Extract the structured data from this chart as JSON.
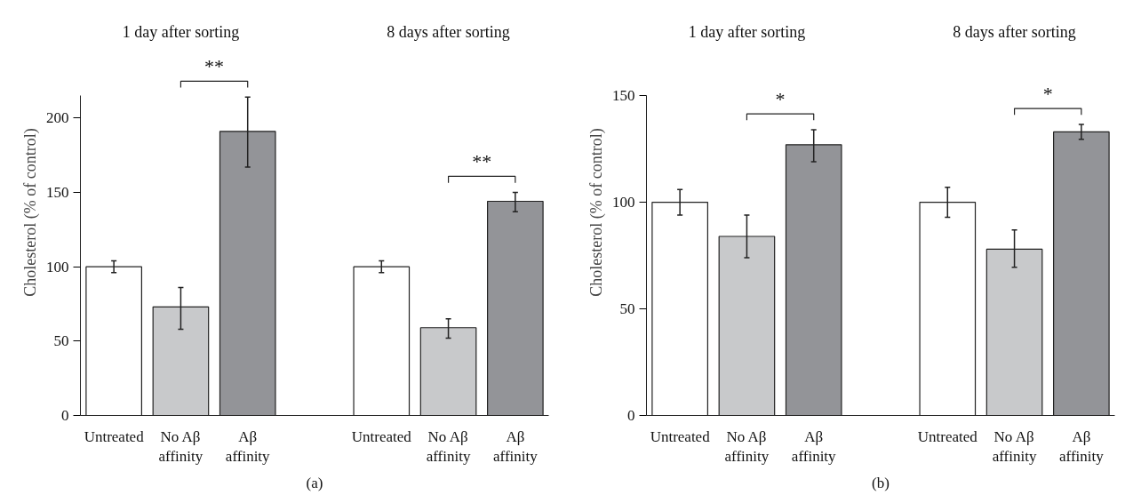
{
  "chart_data": [
    {
      "type": "bar",
      "ylabel": "Cholesterol (% of control)",
      "categories": [
        "Untreated",
        "No Aβ\naffinity",
        "Aβ\naffinity",
        null,
        "Untreated",
        "No Aβ\naffinity",
        "Aβ\naffinity"
      ],
      "values": [
        100,
        73,
        191,
        null,
        100,
        59,
        144
      ],
      "colors": [
        "#ffffff",
        "#c8c9cb",
        "#939498",
        null,
        "#ffffff",
        "#c8c9cb",
        "#939498"
      ],
      "errors": [
        [
          96,
          104
        ],
        [
          58,
          86
        ],
        [
          167,
          214
        ],
        null,
        [
          96,
          104
        ],
        [
          52,
          65
        ],
        [
          137,
          150
        ]
      ],
      "ylim": [
        0,
        215
      ],
      "yticks": [
        0,
        50,
        100,
        150,
        200
      ],
      "grid": false,
      "annotations": [
        "1 day after sorting",
        "8 days after sorting",
        "**",
        "**",
        "(a)"
      ]
    },
    {
      "type": "bar",
      "ylabel": "Cholesterol (% of control)",
      "categories": [
        "Untreated",
        "No Aβ\naffinity",
        "Aβ\naffinity",
        null,
        "Untreated",
        "No Aβ\naffinity",
        "Aβ\naffinity"
      ],
      "values": [
        100,
        84,
        127,
        null,
        100,
        78,
        133
      ],
      "colors": [
        "#ffffff",
        "#c8c9cb",
        "#939498",
        null,
        "#ffffff",
        "#c8c9cb",
        "#939498"
      ],
      "errors": [
        [
          94,
          106
        ],
        [
          74,
          94
        ],
        [
          119,
          134
        ],
        null,
        [
          93,
          107
        ],
        [
          69.5,
          87
        ],
        [
          129.5,
          136.5
        ]
      ],
      "ylim": [
        0,
        150
      ],
      "yticks": [
        0,
        50,
        100,
        150
      ],
      "grid": false,
      "annotations": [
        "1 day after sorting",
        "8 days after sorting",
        "*",
        "*",
        "(b)"
      ]
    }
  ]
}
